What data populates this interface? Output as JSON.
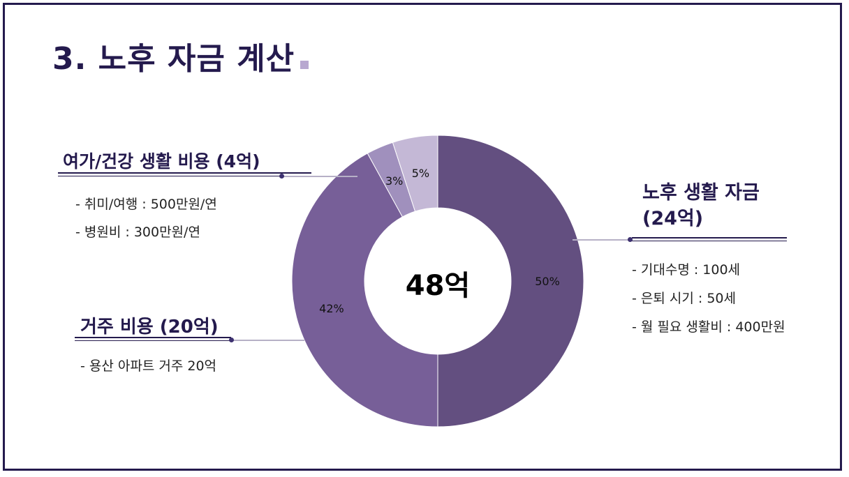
{
  "title": "3. 노후 자금 계산",
  "center_label": "48억",
  "annotations": {
    "leisure": {
      "heading": "여가/건강 생활 비용 (4억)",
      "items": [
        "- 취미/여행 : 500만원/연",
        "- 병원비 : 300만원/연"
      ]
    },
    "housing": {
      "heading": "거주 비용 (20억)",
      "items": [
        "- 용산 아파트 거주 20억"
      ]
    },
    "living": {
      "heading_line1": "노후 생활 자금",
      "heading_line2": "(24억)",
      "items": [
        "- 기대수명 : 100세",
        "- 은퇴 시기 : 50세",
        "- 월 필요 생활비 : 400만원"
      ]
    }
  },
  "chart_data": {
    "type": "pie",
    "donut": true,
    "center_text": "48억",
    "slices": [
      {
        "value": 50,
        "label": "50%",
        "color": "#634f80"
      },
      {
        "value": 42,
        "label": "42%",
        "color": "#775f98"
      },
      {
        "value": 3,
        "label": "3%",
        "color": "#a090bd"
      },
      {
        "value": 5,
        "label": "5%",
        "color": "#c4b8d6"
      }
    ]
  }
}
